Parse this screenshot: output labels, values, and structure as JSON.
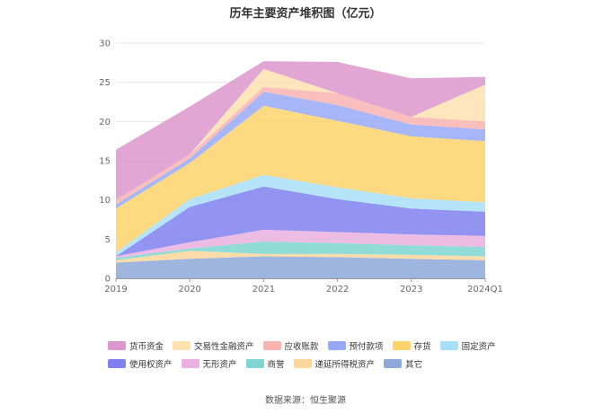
{
  "chart_data": {
    "type": "area",
    "title": "历年主要资产堆积图（亿元）",
    "categories": [
      "2019",
      "2020",
      "2021",
      "2022",
      "2023",
      "2024Q1"
    ],
    "y_ticks": [
      "0",
      "5",
      "10",
      "15",
      "20",
      "25",
      "30"
    ],
    "ylim": [
      0,
      30
    ],
    "grid": true,
    "series": [
      {
        "name": "其它",
        "color": "#8da9d9",
        "values": [
          2.0,
          2.5,
          2.8,
          2.7,
          2.5,
          2.3
        ]
      },
      {
        "name": "递延所得税资产",
        "color": "#fbd69a",
        "values": [
          0.3,
          1.0,
          0.3,
          0.4,
          0.5,
          0.5
        ]
      },
      {
        "name": "商誉",
        "color": "#7fd6d1",
        "values": [
          0.3,
          0.3,
          1.6,
          1.4,
          1.2,
          1.2
        ]
      },
      {
        "name": "无形资产",
        "color": "#e9b0e0",
        "values": [
          0.2,
          0.8,
          1.5,
          1.4,
          1.4,
          1.4
        ]
      },
      {
        "name": "使用权资产",
        "color": "#8080f0",
        "values": [
          0.0,
          4.5,
          5.5,
          4.2,
          3.3,
          3.1
        ]
      },
      {
        "name": "固定资产",
        "color": "#a8dff8",
        "values": [
          0.5,
          1.0,
          1.5,
          1.5,
          1.3,
          1.2
        ]
      },
      {
        "name": "存货",
        "color": "#fdd36b",
        "values": [
          5.6,
          4.6,
          8.8,
          8.5,
          7.9,
          7.8
        ]
      },
      {
        "name": "预付款项",
        "color": "#96a9f5",
        "values": [
          0.5,
          0.6,
          1.8,
          2.0,
          1.5,
          1.5
        ]
      },
      {
        "name": "应收账款",
        "color": "#f9b3b0",
        "values": [
          0.6,
          0.5,
          0.6,
          1.5,
          1.0,
          1.0
        ]
      },
      {
        "name": "交易性金融资产",
        "color": "#fee2b0",
        "values": [
          0.0,
          0.0,
          2.3,
          0.0,
          0.0,
          4.7
        ]
      },
      {
        "name": "货币资金",
        "color": "#dc97cc",
        "values": [
          6.4,
          6.1,
          1.0,
          4.0,
          4.9,
          1.0
        ]
      }
    ],
    "legend_order": [
      "货币资金",
      "交易性金融资产",
      "应收账款",
      "预付款项",
      "存货",
      "固定资产",
      "使用权资产",
      "无形资产",
      "商誉",
      "递延所得税资产",
      "其它"
    ],
    "legend_position": "bottom",
    "source": "数据来源：恒生聚源"
  }
}
